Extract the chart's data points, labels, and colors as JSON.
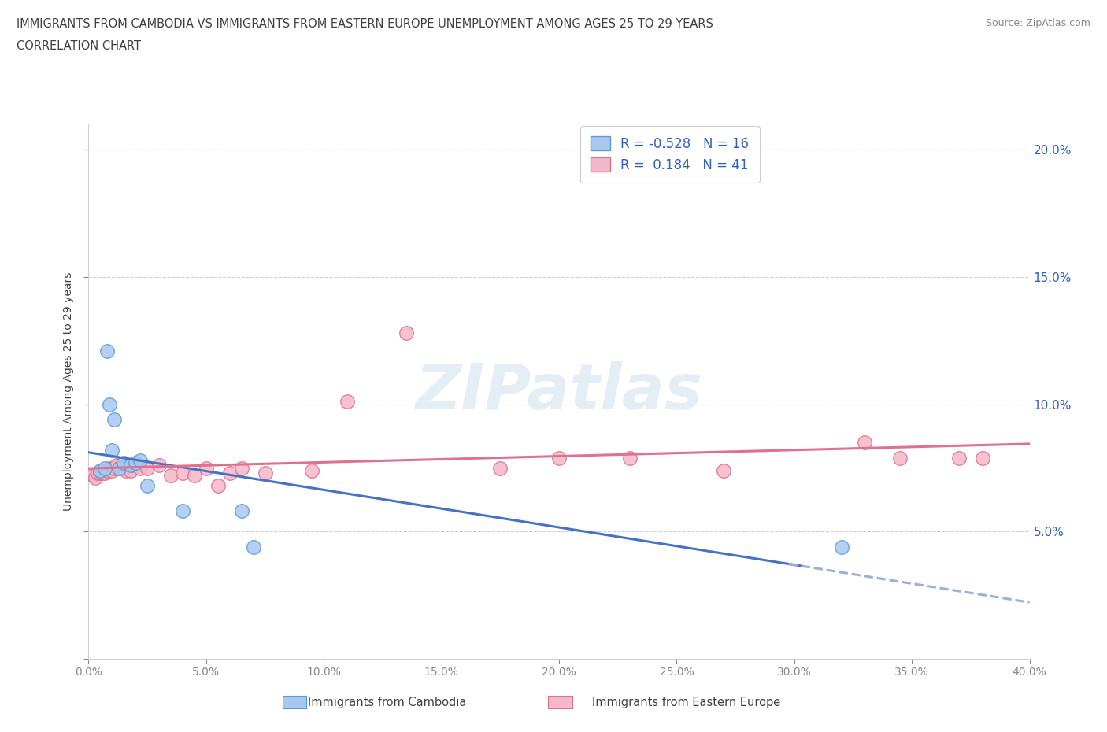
{
  "title_line1": "IMMIGRANTS FROM CAMBODIA VS IMMIGRANTS FROM EASTERN EUROPE UNEMPLOYMENT AMONG AGES 25 TO 29 YEARS",
  "title_line2": "CORRELATION CHART",
  "source": "Source: ZipAtlas.com",
  "ylabel": "Unemployment Among Ages 25 to 29 years",
  "xlim": [
    0.0,
    0.4
  ],
  "ylim": [
    0.0,
    0.21
  ],
  "xticks": [
    0.0,
    0.05,
    0.1,
    0.15,
    0.2,
    0.25,
    0.3,
    0.35,
    0.4
  ],
  "xtick_labels": [
    "0.0%",
    "",
    "",
    "",
    "",
    "",
    "",
    "",
    "40.0%"
  ],
  "yticks": [
    0.0,
    0.05,
    0.1,
    0.15,
    0.2
  ],
  "ytick_labels_right": [
    "",
    "5.0%",
    "10.0%",
    "15.0%",
    "20.0%"
  ],
  "cambodia_color": "#a8c8f0",
  "cambodia_edge": "#5b9bd5",
  "eastern_europe_color": "#f5b8c8",
  "eastern_europe_edge": "#e07090",
  "cambodia_R": -0.528,
  "cambodia_N": 16,
  "eastern_europe_R": 0.184,
  "eastern_europe_N": 41,
  "watermark": "ZIPatlas",
  "legend_label_1": "Immigrants from Cambodia",
  "legend_label_2": "Immigrants from Eastern Europe",
  "cambodia_scatter_x": [
    0.005,
    0.007,
    0.008,
    0.009,
    0.01,
    0.011,
    0.013,
    0.015,
    0.018,
    0.02,
    0.022,
    0.025,
    0.04,
    0.065,
    0.07,
    0.32
  ],
  "cambodia_scatter_y": [
    0.074,
    0.075,
    0.121,
    0.1,
    0.082,
    0.094,
    0.075,
    0.077,
    0.076,
    0.077,
    0.078,
    0.068,
    0.058,
    0.058,
    0.044,
    0.044
  ],
  "eastern_europe_scatter_x": [
    0.002,
    0.003,
    0.004,
    0.005,
    0.006,
    0.007,
    0.008,
    0.009,
    0.01,
    0.01,
    0.011,
    0.012,
    0.013,
    0.014,
    0.015,
    0.016,
    0.017,
    0.018,
    0.02,
    0.022,
    0.025,
    0.03,
    0.035,
    0.04,
    0.045,
    0.05,
    0.055,
    0.06,
    0.065,
    0.075,
    0.095,
    0.11,
    0.135,
    0.175,
    0.2,
    0.23,
    0.27,
    0.33,
    0.345,
    0.37,
    0.38
  ],
  "eastern_europe_scatter_y": [
    0.072,
    0.071,
    0.073,
    0.073,
    0.073,
    0.073,
    0.074,
    0.075,
    0.075,
    0.074,
    0.075,
    0.076,
    0.075,
    0.075,
    0.075,
    0.074,
    0.076,
    0.074,
    0.076,
    0.075,
    0.075,
    0.076,
    0.072,
    0.073,
    0.072,
    0.075,
    0.068,
    0.073,
    0.075,
    0.073,
    0.074,
    0.101,
    0.128,
    0.075,
    0.079,
    0.079,
    0.074,
    0.085,
    0.079,
    0.079,
    0.079
  ],
  "grid_color": "#d0d0d0",
  "background_color": "#ffffff",
  "title_color": "#404040",
  "axis_color": "#888888",
  "tick_color_blue": "#3060c0"
}
